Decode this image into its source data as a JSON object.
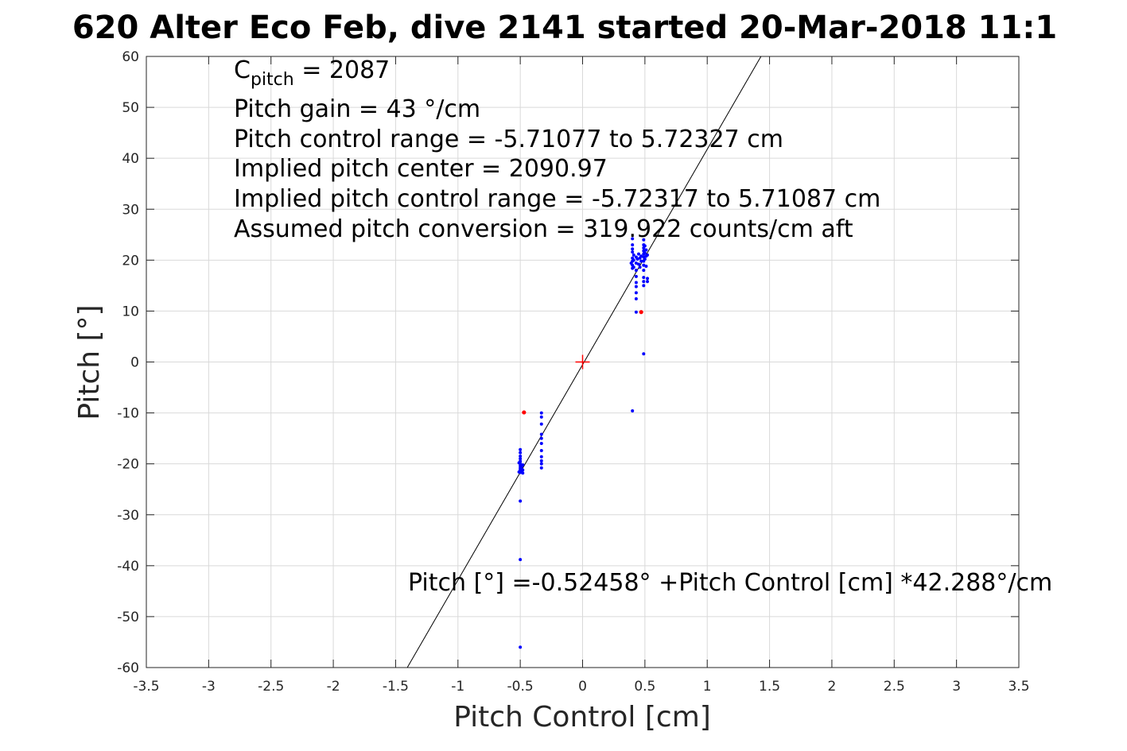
{
  "chart_data": {
    "type": "scatter",
    "title": "620 Alter Eco Feb, dive 2141 started 20-Mar-2018 11:1",
    "xlabel": "Pitch Control [cm]",
    "ylabel": "Pitch [°]",
    "xlim": [
      -3.5,
      3.5
    ],
    "ylim": [
      -60,
      60
    ],
    "xticks": [
      -3.5,
      -3,
      -2.5,
      -2,
      -1.5,
      -1,
      -0.5,
      0,
      0.5,
      1,
      1.5,
      2,
      2.5,
      3,
      3.5
    ],
    "xtick_labels": [
      "-3.5",
      "-3",
      "-2.5",
      "-2",
      "-1.5",
      "-1",
      "-0.5",
      "0",
      "0.5",
      "1",
      "1.5",
      "2",
      "2.5",
      "3",
      "3.5"
    ],
    "yticks": [
      -60,
      -50,
      -40,
      -30,
      -20,
      -10,
      0,
      10,
      20,
      30,
      40,
      50,
      60
    ],
    "ytick_labels": [
      "-60",
      "-50",
      "-40",
      "-30",
      "-20",
      "-10",
      "0",
      "10",
      "20",
      "30",
      "40",
      "50",
      "60"
    ],
    "grid": true,
    "colors": {
      "good": "#0000ff",
      "flagged": "#ff0000",
      "fit": "#000000",
      "center": "#ff0000",
      "grid": "#d9d9d9",
      "axis": "#262626"
    },
    "series": [
      {
        "marker": "dot",
        "color": "#0000ff",
        "points": [
          [
            -0.5,
            -17.2
          ],
          [
            -0.5,
            -17.8
          ],
          [
            -0.5,
            -18.5
          ],
          [
            -0.5,
            -19.0
          ],
          [
            -0.5,
            -19.5
          ],
          [
            -0.5,
            -20.0
          ],
          [
            -0.5,
            -20.4
          ],
          [
            -0.5,
            -20.8
          ],
          [
            -0.5,
            -21.1
          ],
          [
            -0.5,
            -21.4
          ],
          [
            -0.5,
            -21.7
          ],
          [
            -0.49,
            -21.0
          ],
          [
            -0.49,
            -21.5
          ],
          [
            -0.49,
            -20.5
          ],
          [
            -0.48,
            -21.2
          ],
          [
            -0.48,
            -21.8
          ],
          [
            -0.48,
            -20.2
          ],
          [
            -0.51,
            -21.6
          ],
          [
            -0.51,
            -19.8
          ],
          [
            -0.5,
            -27.3
          ],
          [
            -0.5,
            -38.8
          ],
          [
            -0.5,
            -56.0
          ],
          [
            -0.33,
            -10.0
          ],
          [
            -0.33,
            -10.8
          ],
          [
            -0.33,
            -12.2
          ],
          [
            -0.33,
            -14.2
          ],
          [
            -0.33,
            -15.0
          ],
          [
            -0.33,
            -16.0
          ],
          [
            -0.33,
            -17.4
          ],
          [
            -0.33,
            -18.6
          ],
          [
            -0.33,
            -19.4
          ],
          [
            -0.33,
            -20.0
          ],
          [
            -0.33,
            -20.8
          ],
          [
            0.4,
            24.2
          ],
          [
            0.4,
            23.0
          ],
          [
            0.4,
            22.2
          ],
          [
            0.4,
            21.6
          ],
          [
            0.4,
            20.4
          ],
          [
            0.4,
            19.8
          ],
          [
            0.4,
            19.0
          ],
          [
            0.4,
            18.4
          ],
          [
            0.41,
            20.0
          ],
          [
            0.41,
            21.0
          ],
          [
            0.41,
            18.6
          ],
          [
            0.39,
            19.4
          ],
          [
            0.43,
            20.6
          ],
          [
            0.43,
            19.4
          ],
          [
            0.43,
            18.0
          ],
          [
            0.43,
            16.8
          ],
          [
            0.43,
            15.6
          ],
          [
            0.43,
            14.8
          ],
          [
            0.43,
            13.6
          ],
          [
            0.43,
            12.4
          ],
          [
            0.43,
            9.8
          ],
          [
            0.44,
            20.2
          ],
          [
            0.45,
            19.2
          ],
          [
            0.45,
            21.2
          ],
          [
            0.46,
            20.4
          ],
          [
            0.46,
            18.6
          ],
          [
            0.47,
            20.8
          ],
          [
            0.47,
            19.8
          ],
          [
            0.49,
            24.0
          ],
          [
            0.49,
            23.0
          ],
          [
            0.49,
            22.4
          ],
          [
            0.49,
            21.8
          ],
          [
            0.49,
            21.2
          ],
          [
            0.49,
            20.6
          ],
          [
            0.49,
            19.8
          ],
          [
            0.49,
            19.0
          ],
          [
            0.49,
            18.0
          ],
          [
            0.49,
            16.6
          ],
          [
            0.49,
            15.8
          ],
          [
            0.49,
            15.0
          ],
          [
            0.49,
            1.6
          ],
          [
            0.5,
            22.8
          ],
          [
            0.5,
            21.4
          ],
          [
            0.5,
            20.2
          ],
          [
            0.51,
            22.0
          ],
          [
            0.51,
            20.8
          ],
          [
            0.51,
            18.8
          ],
          [
            0.52,
            21.0
          ],
          [
            0.52,
            16.4
          ],
          [
            0.52,
            15.8
          ],
          [
            0.4,
            -9.6
          ]
        ]
      },
      {
        "marker": "dot",
        "color": "#ff0000",
        "points": [
          [
            -0.47,
            -9.9
          ],
          [
            0.47,
            9.8
          ]
        ]
      }
    ],
    "fit_line": {
      "intercept": -0.52458,
      "slope": 42.288
    },
    "center_marker": [
      0,
      0
    ],
    "annotations": [
      {
        "lines": [
          {
            "base": "C",
            "sub": "pitch",
            "rest": " = 2087"
          },
          {
            "text": "Pitch gain = 43 °/cm"
          },
          {
            "text": "Pitch control range = -5.71077 to 5.72327 cm"
          },
          {
            "text": "Implied pitch center = 2090.97"
          },
          {
            "text": "Implied pitch control range = -5.72317 to 5.71087 cm"
          },
          {
            "text": "Assumed pitch conversion = 319.922 counts/cm aft"
          }
        ]
      },
      {
        "text": "Pitch [°] =-0.52458° +Pitch Control [cm] *42.288°/cm"
      }
    ]
  }
}
